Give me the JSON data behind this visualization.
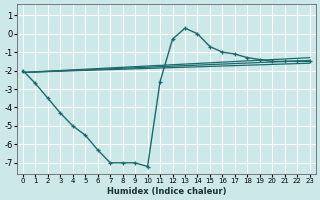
{
  "xlabel": "Humidex (Indice chaleur)",
  "bg_color": "#cce8e8",
  "grid_color": "#ffffff",
  "line_color": "#1a6b6b",
  "ylim": [
    -7.6,
    1.6
  ],
  "xlim": [
    -0.5,
    23.5
  ],
  "line1_x": [
    0,
    1,
    2,
    3,
    4,
    5,
    6,
    7,
    8,
    9,
    10,
    11,
    12,
    13,
    14,
    15,
    16,
    17,
    18,
    19,
    20,
    21,
    22,
    23
  ],
  "line1_y": [
    -2.0,
    -2.7,
    -3.5,
    -4.3,
    -5.0,
    -5.5,
    -6.3,
    -7.0,
    -7.0,
    -7.0,
    -7.2,
    -2.6,
    -0.3,
    0.3,
    0.0,
    -0.7,
    -1.0,
    -1.1,
    -1.3,
    -1.4,
    -1.5,
    -1.5,
    -1.5,
    -1.5
  ],
  "straight_lines": [
    {
      "x": [
        0,
        23
      ],
      "y": [
        -2.1,
        -1.45
      ]
    },
    {
      "x": [
        0,
        23
      ],
      "y": [
        -2.1,
        -1.6
      ]
    },
    {
      "x": [
        0,
        23
      ],
      "y": [
        -2.1,
        -1.3
      ]
    }
  ],
  "yticks": [
    -7,
    -6,
    -5,
    -4,
    -3,
    -2,
    -1,
    0,
    1
  ],
  "xticks": [
    0,
    1,
    2,
    3,
    4,
    5,
    6,
    7,
    8,
    9,
    10,
    11,
    12,
    13,
    14,
    15,
    16,
    17,
    18,
    19,
    20,
    21,
    22,
    23
  ]
}
